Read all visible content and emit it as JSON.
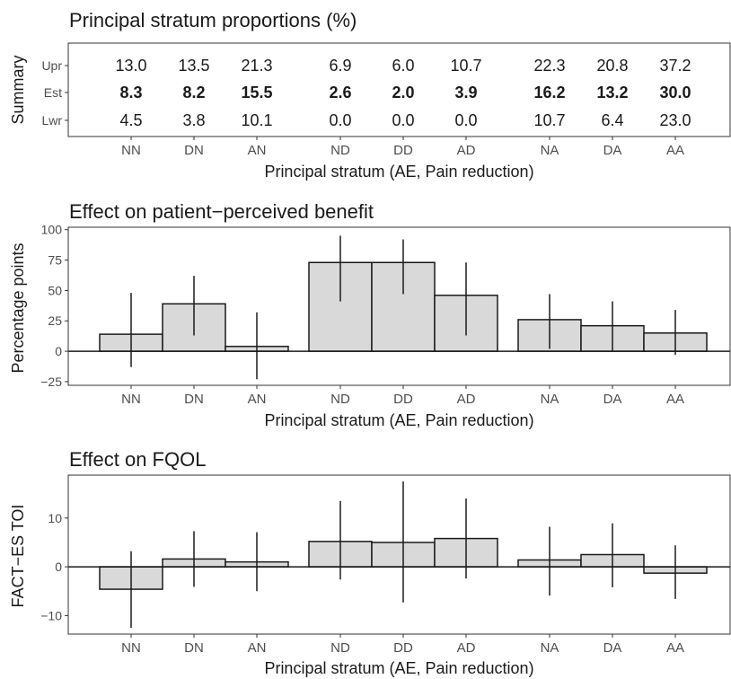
{
  "chart_data": [
    {
      "type": "table",
      "title": "Principal stratum proportions (%)",
      "xlabel": "Principal stratum (AE, Pain reduction)",
      "ylabel": "Summary",
      "categories": [
        "NN",
        "DN",
        "AN",
        "ND",
        "DD",
        "AD",
        "NA",
        "DA",
        "AA"
      ],
      "rows": [
        {
          "label": "Upr",
          "values": [
            "13.0",
            "13.5",
            "21.3",
            "6.9",
            "6.0",
            "10.7",
            "22.3",
            "20.8",
            "37.2"
          ],
          "bold": false
        },
        {
          "label": "Est",
          "values": [
            "8.3",
            "8.2",
            "15.5",
            "2.6",
            "2.0",
            "3.9",
            "16.2",
            "13.2",
            "30.0"
          ],
          "bold": true
        },
        {
          "label": "Lwr",
          "values": [
            "4.5",
            "3.8",
            "10.1",
            "0.0",
            "0.0",
            "0.0",
            "10.7",
            "6.4",
            "23.0"
          ],
          "bold": false
        }
      ]
    },
    {
      "type": "bar",
      "title": "Effect on patient−perceived benefit",
      "xlabel": "Principal stratum (AE, Pain reduction)",
      "ylabel": "Percentage points",
      "categories": [
        "NN",
        "DN",
        "AN",
        "ND",
        "DD",
        "AD",
        "NA",
        "DA",
        "AA"
      ],
      "values": [
        14,
        39,
        4,
        73,
        73,
        46,
        26,
        21,
        15
      ],
      "lower": [
        -13,
        13,
        -23,
        41,
        47,
        13,
        2,
        0,
        -3
      ],
      "upper": [
        48,
        62,
        32,
        95,
        92,
        73,
        47,
        41,
        34
      ],
      "ylim": [
        -28,
        102
      ],
      "yticks": [
        -25,
        0,
        25,
        50,
        75,
        100
      ],
      "ytick_labels": [
        "−25",
        "0",
        "25",
        "50",
        "75",
        "100"
      ]
    },
    {
      "type": "bar",
      "title": "Effect on FQOL",
      "xlabel": "Principal stratum (AE, Pain reduction)",
      "ylabel": "FACT−ES TOI",
      "categories": [
        "NN",
        "DN",
        "AN",
        "ND",
        "DD",
        "AD",
        "NA",
        "DA",
        "AA"
      ],
      "values": [
        -4.6,
        1.6,
        1.0,
        5.2,
        5.0,
        5.8,
        1.4,
        2.5,
        -1.3
      ],
      "lower": [
        -12.5,
        -4.1,
        -5.0,
        -2.6,
        -7.3,
        -2.4,
        -5.9,
        -4.2,
        -6.6
      ],
      "upper": [
        3.2,
        7.3,
        7.1,
        13.5,
        17.5,
        14.0,
        8.2,
        8.9,
        4.4
      ],
      "ylim": [
        -13.8,
        18.8
      ],
      "yticks": [
        -10,
        0,
        10
      ],
      "ytick_labels": [
        "−10",
        "0",
        "10"
      ]
    }
  ],
  "colors": {
    "bar_fill": "#d9d9d9",
    "bar_stroke": "#1a1a1a",
    "panel_border": "#333333",
    "tick_text": "#4d4d4d"
  }
}
